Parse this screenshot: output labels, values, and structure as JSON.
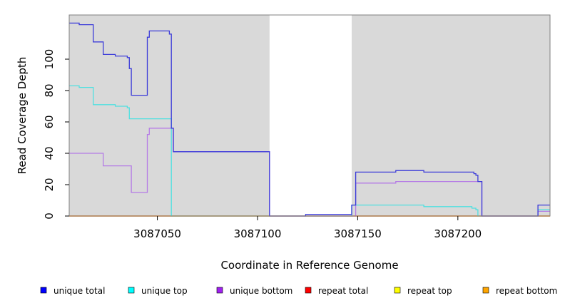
{
  "chart_data": {
    "type": "line",
    "title": "",
    "xlabel": "Coordinate in Reference Genome",
    "ylabel": "Read Coverage Depth",
    "xlim": [
      3087006,
      3087246
    ],
    "ylim": [
      0,
      128
    ],
    "x_ticks": [
      3087050,
      3087100,
      3087150,
      3087200
    ],
    "x_tick_labels": [
      "3087050",
      "3087100",
      "3087150",
      "3087200"
    ],
    "y_ticks": [
      0,
      20,
      40,
      60,
      80,
      100
    ],
    "y_tick_labels": [
      "0",
      "20",
      "40",
      "60",
      "80",
      "100"
    ],
    "shaded_regions": [
      {
        "x0": 3087006,
        "x1": 3087106,
        "color": "#d9d9d9"
      },
      {
        "x0": 3087147,
        "x1": 3087246,
        "color": "#d9d9d9"
      }
    ],
    "legend_position": "bottom",
    "series": [
      {
        "name": "unique total",
        "color": "#0000ff",
        "line_color": "#3b3bd9",
        "points": [
          [
            3087006,
            123
          ],
          [
            3087011,
            123
          ],
          [
            3087011,
            122
          ],
          [
            3087018,
            122
          ],
          [
            3087018,
            111
          ],
          [
            3087023,
            111
          ],
          [
            3087023,
            103
          ],
          [
            3087029,
            103
          ],
          [
            3087029,
            102
          ],
          [
            3087035,
            102
          ],
          [
            3087035,
            101
          ],
          [
            3087036,
            101
          ],
          [
            3087036,
            94
          ],
          [
            3087037,
            94
          ],
          [
            3087037,
            77
          ],
          [
            3087045,
            77
          ],
          [
            3087045,
            114
          ],
          [
            3087046,
            114
          ],
          [
            3087046,
            118
          ],
          [
            3087056,
            118
          ],
          [
            3087056,
            116
          ],
          [
            3087057,
            116
          ],
          [
            3087057,
            56
          ],
          [
            3087058,
            56
          ],
          [
            3087058,
            41
          ],
          [
            3087106,
            41
          ],
          [
            3087106,
            0
          ],
          [
            3087124,
            0
          ],
          [
            3087124,
            1
          ],
          [
            3087147,
            1
          ],
          [
            3087147,
            7
          ],
          [
            3087149,
            7
          ],
          [
            3087149,
            28
          ],
          [
            3087169,
            28
          ],
          [
            3087169,
            29
          ],
          [
            3087183,
            29
          ],
          [
            3087183,
            28
          ],
          [
            3087208,
            28
          ],
          [
            3087208,
            27
          ],
          [
            3087209,
            27
          ],
          [
            3087209,
            26
          ],
          [
            3087210,
            26
          ],
          [
            3087210,
            22
          ],
          [
            3087212,
            22
          ],
          [
            3087212,
            0
          ],
          [
            3087240,
            0
          ],
          [
            3087240,
            7
          ],
          [
            3087246,
            7
          ]
        ]
      },
      {
        "name": "unique top",
        "color": "#00ffff",
        "line_color": "#4fe0e0",
        "points": [
          [
            3087006,
            83
          ],
          [
            3087011,
            83
          ],
          [
            3087011,
            82
          ],
          [
            3087018,
            82
          ],
          [
            3087018,
            71
          ],
          [
            3087029,
            71
          ],
          [
            3087029,
            70
          ],
          [
            3087035,
            70
          ],
          [
            3087035,
            69
          ],
          [
            3087036,
            69
          ],
          [
            3087036,
            62
          ],
          [
            3087057,
            62
          ],
          [
            3087057,
            0
          ],
          [
            3087147,
            0
          ],
          [
            3087147,
            7
          ],
          [
            3087183,
            7
          ],
          [
            3087183,
            6
          ],
          [
            3087207,
            6
          ],
          [
            3087207,
            5
          ],
          [
            3087209,
            5
          ],
          [
            3087209,
            4
          ],
          [
            3087210,
            4
          ],
          [
            3087210,
            0
          ],
          [
            3087240,
            0
          ],
          [
            3087240,
            4
          ],
          [
            3087246,
            4
          ]
        ]
      },
      {
        "name": "unique bottom",
        "color": "#a020f0",
        "line_color": "#b57be6",
        "points": [
          [
            3087006,
            40
          ],
          [
            3087023,
            40
          ],
          [
            3087023,
            32
          ],
          [
            3087037,
            32
          ],
          [
            3087037,
            15
          ],
          [
            3087045,
            15
          ],
          [
            3087045,
            52
          ],
          [
            3087046,
            52
          ],
          [
            3087046,
            56
          ],
          [
            3087058,
            56
          ],
          [
            3087058,
            41
          ],
          [
            3087106,
            41
          ],
          [
            3087106,
            0
          ],
          [
            3087149,
            0
          ],
          [
            3087149,
            21
          ],
          [
            3087169,
            21
          ],
          [
            3087169,
            22
          ],
          [
            3087212,
            22
          ],
          [
            3087212,
            0
          ],
          [
            3087240,
            0
          ],
          [
            3087240,
            3
          ],
          [
            3087246,
            3
          ]
        ]
      },
      {
        "name": "repeat total",
        "color": "#ff0000",
        "line_color": "#ff0000",
        "points": [
          [
            3087006,
            0
          ],
          [
            3087246,
            0
          ]
        ]
      },
      {
        "name": "repeat top",
        "color": "#ffff00",
        "line_color": "#ffff00",
        "points": [
          [
            3087006,
            0
          ],
          [
            3087246,
            0
          ]
        ]
      },
      {
        "name": "repeat bottom",
        "color": "#ffa500",
        "line_color": "#ffa500",
        "points": [
          [
            3087006,
            0
          ],
          [
            3087246,
            0
          ]
        ]
      }
    ]
  }
}
